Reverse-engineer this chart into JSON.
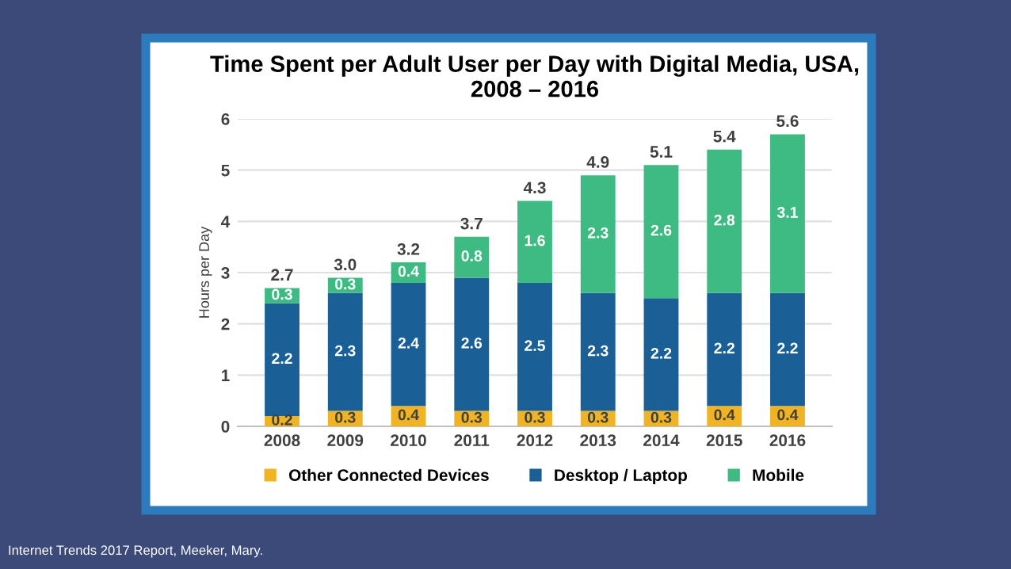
{
  "chart_data": {
    "type": "bar",
    "title": "Time Spent per Adult User per Day with Digital Media, USA,\n2008 – 2016",
    "ylabel": "Hours per Day",
    "categories": [
      "2008",
      "2009",
      "2010",
      "2011",
      "2012",
      "2013",
      "2014",
      "2015",
      "2016"
    ],
    "stacked": true,
    "data_labels": true,
    "series": [
      {
        "name": "Other Connected Devices",
        "color": "#f0b323",
        "values": [
          0.2,
          0.3,
          0.4,
          0.3,
          0.3,
          0.3,
          0.3,
          0.4,
          0.4
        ]
      },
      {
        "name": "Desktop / Laptop",
        "color": "#1a5f96",
        "values": [
          2.2,
          2.3,
          2.4,
          2.6,
          2.5,
          2.3,
          2.2,
          2.2,
          2.2
        ]
      },
      {
        "name": "Mobile",
        "color": "#3dbb83",
        "values": [
          0.3,
          0.3,
          0.4,
          0.8,
          1.6,
          2.3,
          2.6,
          2.8,
          3.1
        ]
      }
    ],
    "totals": [
      "2.7",
      "3.0",
      "3.2",
      "3.7",
      "4.3",
      "4.9",
      "5.1",
      "5.4",
      "5.6"
    ],
    "ylim": [
      0,
      6
    ],
    "yticks": [
      0,
      1,
      2,
      3,
      4,
      5,
      6
    ],
    "grid": "y",
    "legend": "bottom",
    "annotations": [
      "Internet Trends 2017 Report, Meeker, Mary."
    ]
  }
}
